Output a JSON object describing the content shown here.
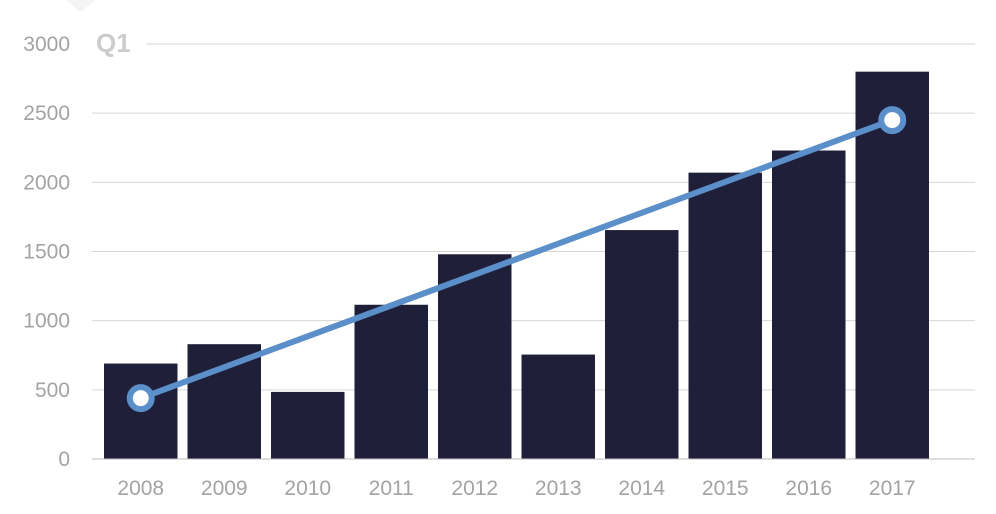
{
  "chart_data": {
    "type": "bar",
    "annotation": "Q1",
    "categories": [
      "2008",
      "2009",
      "2010",
      "2011",
      "2012",
      "2013",
      "2014",
      "2015",
      "2016",
      "2017"
    ],
    "values": [
      690,
      830,
      485,
      1115,
      1480,
      755,
      1655,
      2070,
      2230,
      2800
    ],
    "trendline": {
      "start": {
        "x": "2008",
        "y": 440
      },
      "end": {
        "x": "2017",
        "y": 2450
      }
    },
    "y_ticks": [
      0,
      500,
      1000,
      1500,
      2000,
      2500,
      3000
    ],
    "ylim": [
      0,
      3000
    ],
    "grid": true,
    "colors": {
      "bar": "#1f1f3a",
      "trendline": "#5b8fc9",
      "marker_fill": "#ffffff"
    }
  }
}
